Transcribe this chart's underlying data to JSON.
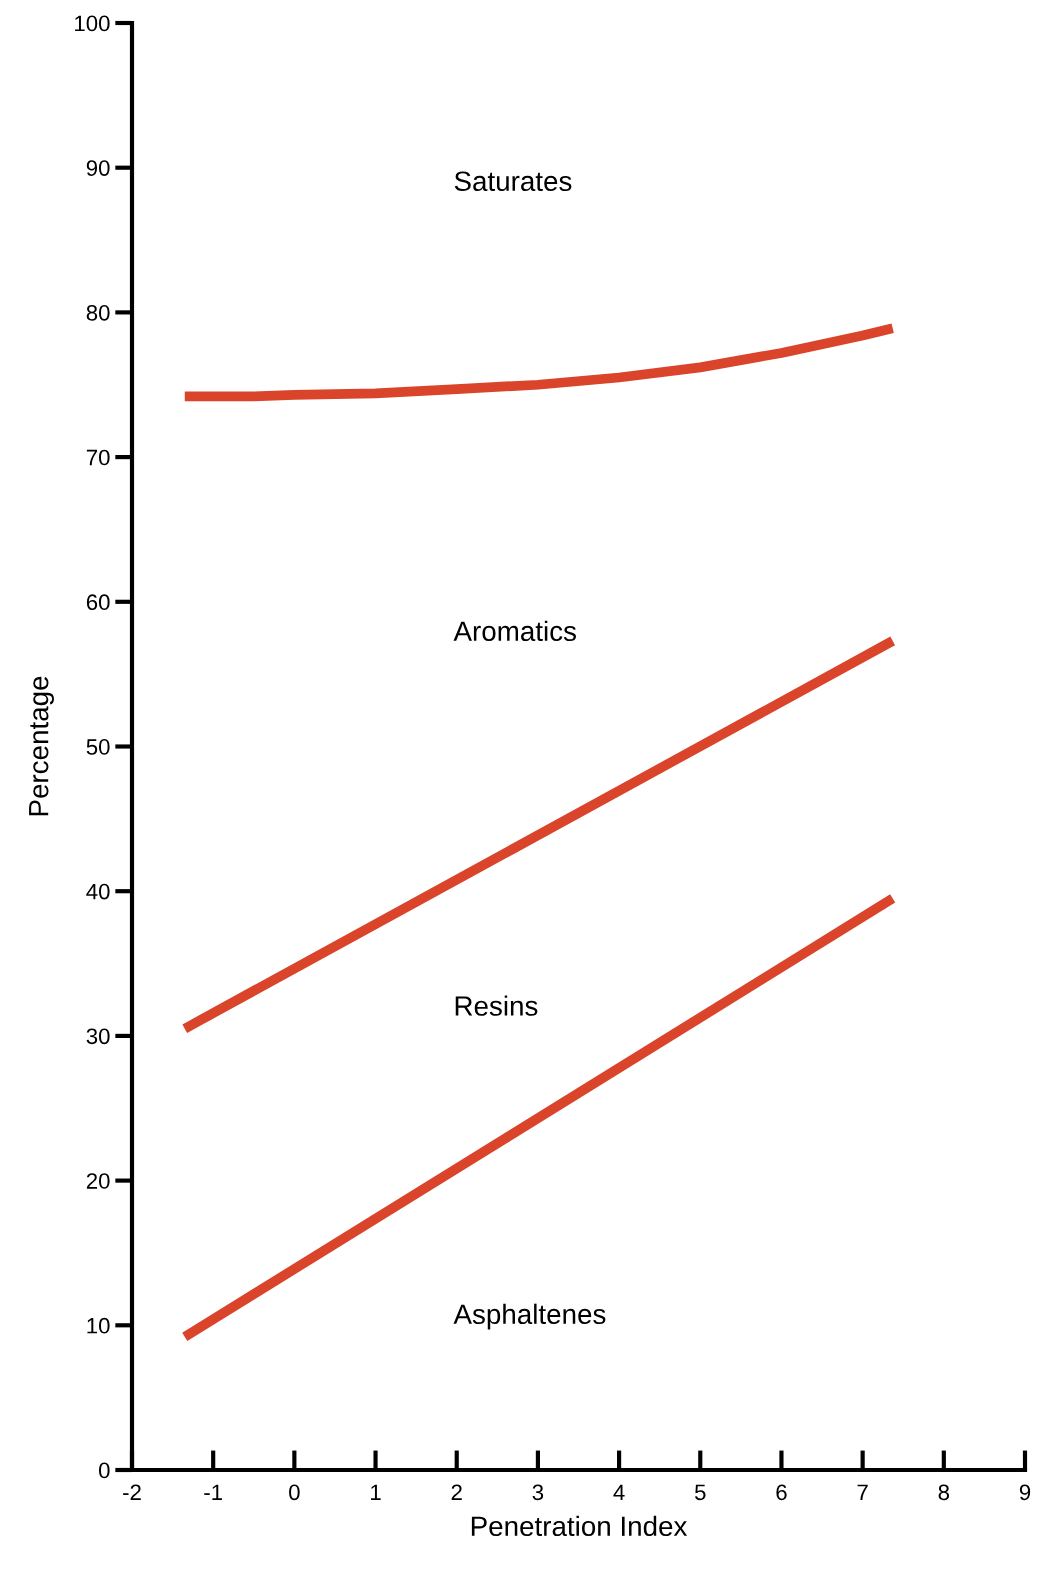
{
  "chart_data": {
    "type": "line",
    "xlabel": "Penetration Index",
    "ylabel": "Percentage",
    "xlim": [
      -2,
      9
    ],
    "xticks": [
      -2,
      -1,
      0,
      1,
      2,
      3,
      4,
      5,
      6,
      7,
      8,
      9
    ],
    "ylim": [
      0,
      100
    ],
    "yticks": [
      0,
      10,
      20,
      30,
      40,
      50,
      60,
      70,
      80,
      90,
      100
    ],
    "grid": false,
    "marker": "none",
    "line_style": "solid",
    "series": [
      {
        "color": "#d9442a",
        "x": [
          -1.35,
          -0.5,
          0,
          1,
          2,
          3,
          4,
          5,
          6,
          7,
          7.37
        ],
        "values": [
          74.2,
          74.2,
          74.3,
          74.4,
          74.7,
          75.0,
          75.5,
          76.2,
          77.2,
          78.4,
          78.9
        ]
      },
      {
        "color": "#d9442a",
        "x": [
          -1.35,
          7.37
        ],
        "values": [
          30.5,
          57.3
        ]
      },
      {
        "color": "#d9442a",
        "x": [
          -1.35,
          7.37
        ],
        "values": [
          9.2,
          39.5
        ]
      }
    ],
    "annotations": [
      "Saturates",
      "Aromatics",
      "Resins",
      "Asphaltenes"
    ]
  }
}
